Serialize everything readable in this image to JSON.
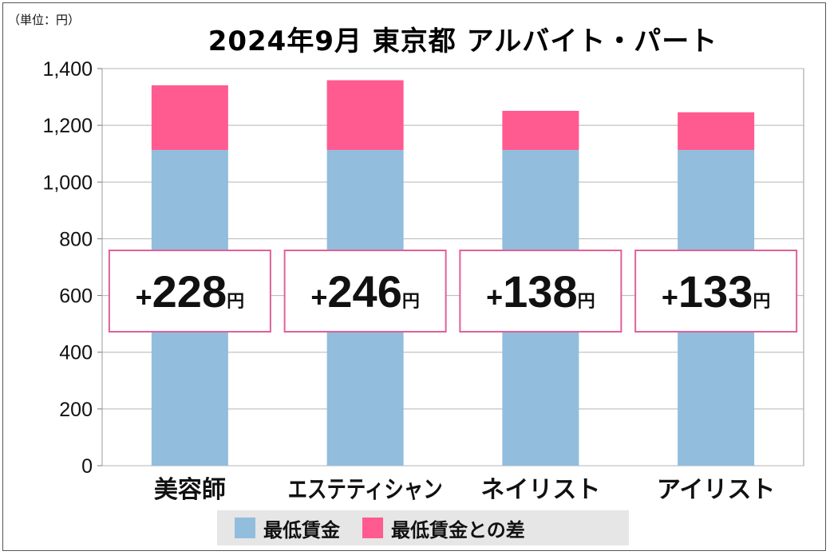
{
  "chart_data": {
    "type": "bar",
    "stacked": true,
    "title": "2024年9月 東京都 アルバイト・パート",
    "unit_label": "（単位：円）",
    "categories": [
      "美容師",
      "エステティシャン",
      "ネイリスト",
      "アイリスト"
    ],
    "series": [
      {
        "name": "最低賃金",
        "color": "#92bddd",
        "values": [
          1113,
          1113,
          1113,
          1113
        ]
      },
      {
        "name": "最低賃金との差",
        "color": "#ff5b91",
        "values": [
          228,
          246,
          138,
          133
        ]
      }
    ],
    "callouts": [
      {
        "sign": "+",
        "number": "228",
        "unit": "円"
      },
      {
        "sign": "+",
        "number": "246",
        "unit": "円"
      },
      {
        "sign": "+",
        "number": "138",
        "unit": "円"
      },
      {
        "sign": "+",
        "number": "133",
        "unit": "円"
      }
    ],
    "y_ticks": [
      "0",
      "200",
      "400",
      "600",
      "800",
      "1,000",
      "1,200",
      "1,400"
    ],
    "ylim": [
      0,
      1400
    ],
    "grid": true,
    "legend_position": "bottom"
  }
}
